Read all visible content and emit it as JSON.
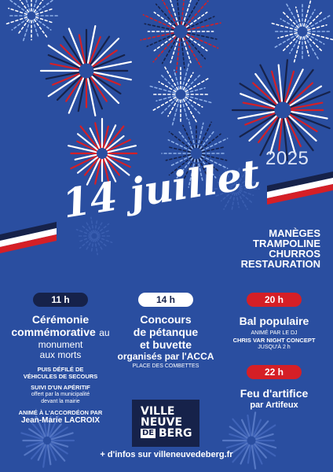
{
  "year": "2025",
  "title": "14 juillet",
  "activities": [
    "MANÈGES",
    "TRAMPOLINE",
    "CHURROS",
    "RESTAURATION"
  ],
  "events": {
    "e11": {
      "time": "11 h",
      "title_line1": "Cérémonie",
      "title_line2_bold": "commémorative",
      "title_line2_rest": "au",
      "title_line3": "monument",
      "title_line4": "aux morts",
      "detail1_line1": "PUIS DÉFILÉ DE",
      "detail1_line2": "VÉHICULES DE SECOURS",
      "detail2": "SUIVI D'UN APÉRITIF",
      "detail3_line1": "offert par la municipalité",
      "detail3_line2": "devant la mairie",
      "detail4": "ANIMÉ À L'ACCORDÉON PAR",
      "detail5": "Jean-Marie LACROIX"
    },
    "e14": {
      "time": "14 h",
      "title_line1": "Concours",
      "title_line2": "de pétanque",
      "title_line3": "et buvette",
      "sub": "organisés par l'ACCA",
      "place": "PLACE DES COMBETTES"
    },
    "e20": {
      "time": "20 h",
      "title": "Bal populaire",
      "detail1": "ANIMÉ PAR LE DJ",
      "detail2": "CHRIS VAR NIGHT CONCEPT",
      "detail3": "JUSQU'À 2 h"
    },
    "e22": {
      "time": "22 h",
      "title": "Feu d'artifice",
      "sub": "par Artifeux"
    }
  },
  "logo": {
    "line1": "VILLE",
    "line2": "NEUVE",
    "line3": "DE",
    "line4": "BERG"
  },
  "footer": "+ d'infos sur villeneuvedeberg.fr",
  "colors": {
    "background": "#2a4ea0",
    "navy": "#16224a",
    "red": "#d51f26",
    "white": "#ffffff"
  }
}
